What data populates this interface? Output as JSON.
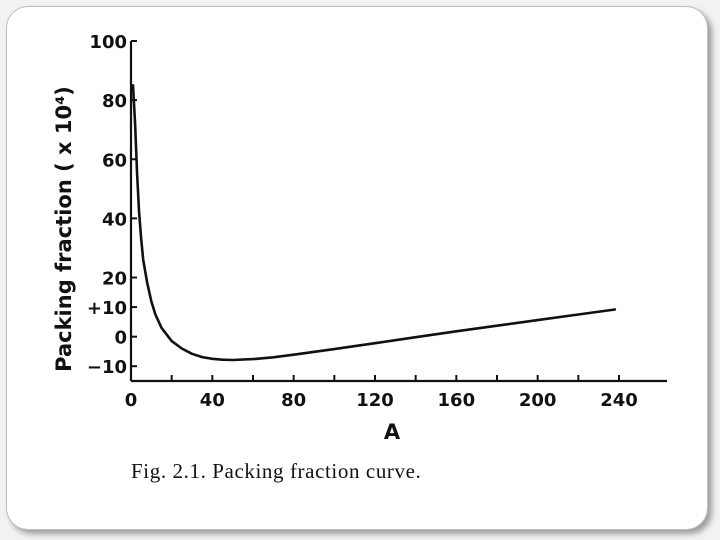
{
  "chart_data": {
    "type": "line",
    "xlabel": "A",
    "ylabel": "Packing fraction ( x 10⁴)",
    "xlim": [
      0,
      240
    ],
    "ylim": [
      -15,
      100
    ],
    "x_ticks": [
      0,
      40,
      80,
      120,
      160,
      200,
      240
    ],
    "x_tick_labels": [
      "0",
      "40",
      "80",
      "120",
      "160",
      "200",
      "240"
    ],
    "y_ticks": [
      100,
      80,
      60,
      40,
      20,
      10,
      0,
      -10
    ],
    "y_tick_labels": [
      "100",
      "80",
      "60",
      "40",
      "20",
      "+10",
      "0",
      "−10"
    ],
    "grid": false,
    "series": [
      {
        "x": [
          1,
          2,
          3,
          4,
          5,
          6,
          8,
          10,
          12,
          15,
          20,
          25,
          30,
          35,
          40,
          45,
          50,
          60,
          70,
          80,
          100,
          120,
          140,
          160,
          180,
          200,
          220,
          238
        ],
        "y": [
          85,
          72,
          55,
          42,
          33,
          26,
          18,
          12,
          7.5,
          3,
          -1.5,
          -4,
          -5.8,
          -6.9,
          -7.5,
          -7.8,
          -7.9,
          -7.6,
          -7,
          -6.1,
          -4.2,
          -2.2,
          -0.2,
          1.8,
          3.7,
          5.6,
          7.5,
          9.2
        ]
      }
    ]
  },
  "caption": "Fig. 2.1. Packing fraction curve."
}
